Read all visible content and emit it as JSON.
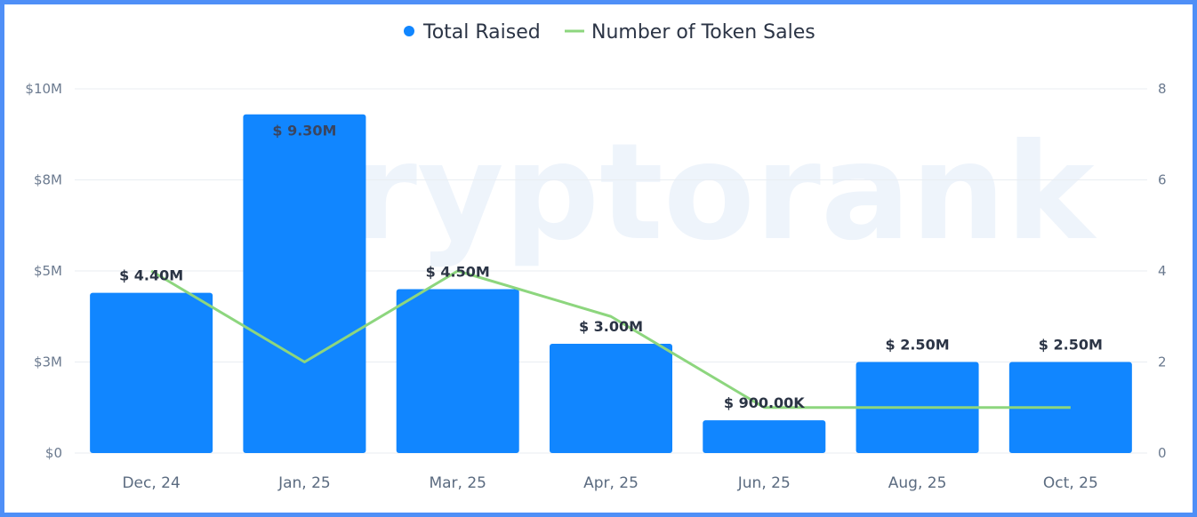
{
  "colors": {
    "bar": "#1186ff",
    "line": "#8dd67e",
    "grid": "#e9edf2",
    "border": "#4f8ff7"
  },
  "watermark_text": "ryptorank",
  "chart_data": {
    "type": "bar",
    "categories": [
      "Dec, 24",
      "Jan, 25",
      "Mar, 25",
      "Apr, 25",
      "Jun, 25",
      "Aug, 25",
      "Oct, 25"
    ],
    "series": [
      {
        "name": "Total Raised",
        "kind": "bar",
        "axis": "left",
        "values": [
          4400000,
          9300000,
          4500000,
          3000000,
          900000,
          2500000,
          2500000
        ],
        "labels": [
          "$ 4.40M",
          "$ 9.30M",
          "$ 4.50M",
          "$ 3.00M",
          "$ 900.00K",
          "$ 2.50M",
          "$ 2.50M"
        ]
      },
      {
        "name": "Number of Token Sales",
        "kind": "line",
        "axis": "right",
        "values": [
          4,
          2,
          4,
          3,
          1,
          1,
          1
        ]
      }
    ],
    "y_left": {
      "ylim": [
        0,
        10000000
      ],
      "ticks": [
        0,
        2500000,
        5000000,
        7500000,
        10000000
      ],
      "tick_labels": [
        "$0",
        "$3M",
        "$5M",
        "$8M",
        "$10M"
      ]
    },
    "y_right": {
      "ylim": [
        0,
        8
      ],
      "ticks": [
        0,
        2,
        4,
        6,
        8
      ],
      "tick_labels": [
        "0",
        "2",
        "4",
        "6",
        "8"
      ]
    },
    "legend": {
      "position": "top-center",
      "entries": [
        "Total Raised",
        "Number of Token Sales"
      ]
    },
    "grid": true
  }
}
